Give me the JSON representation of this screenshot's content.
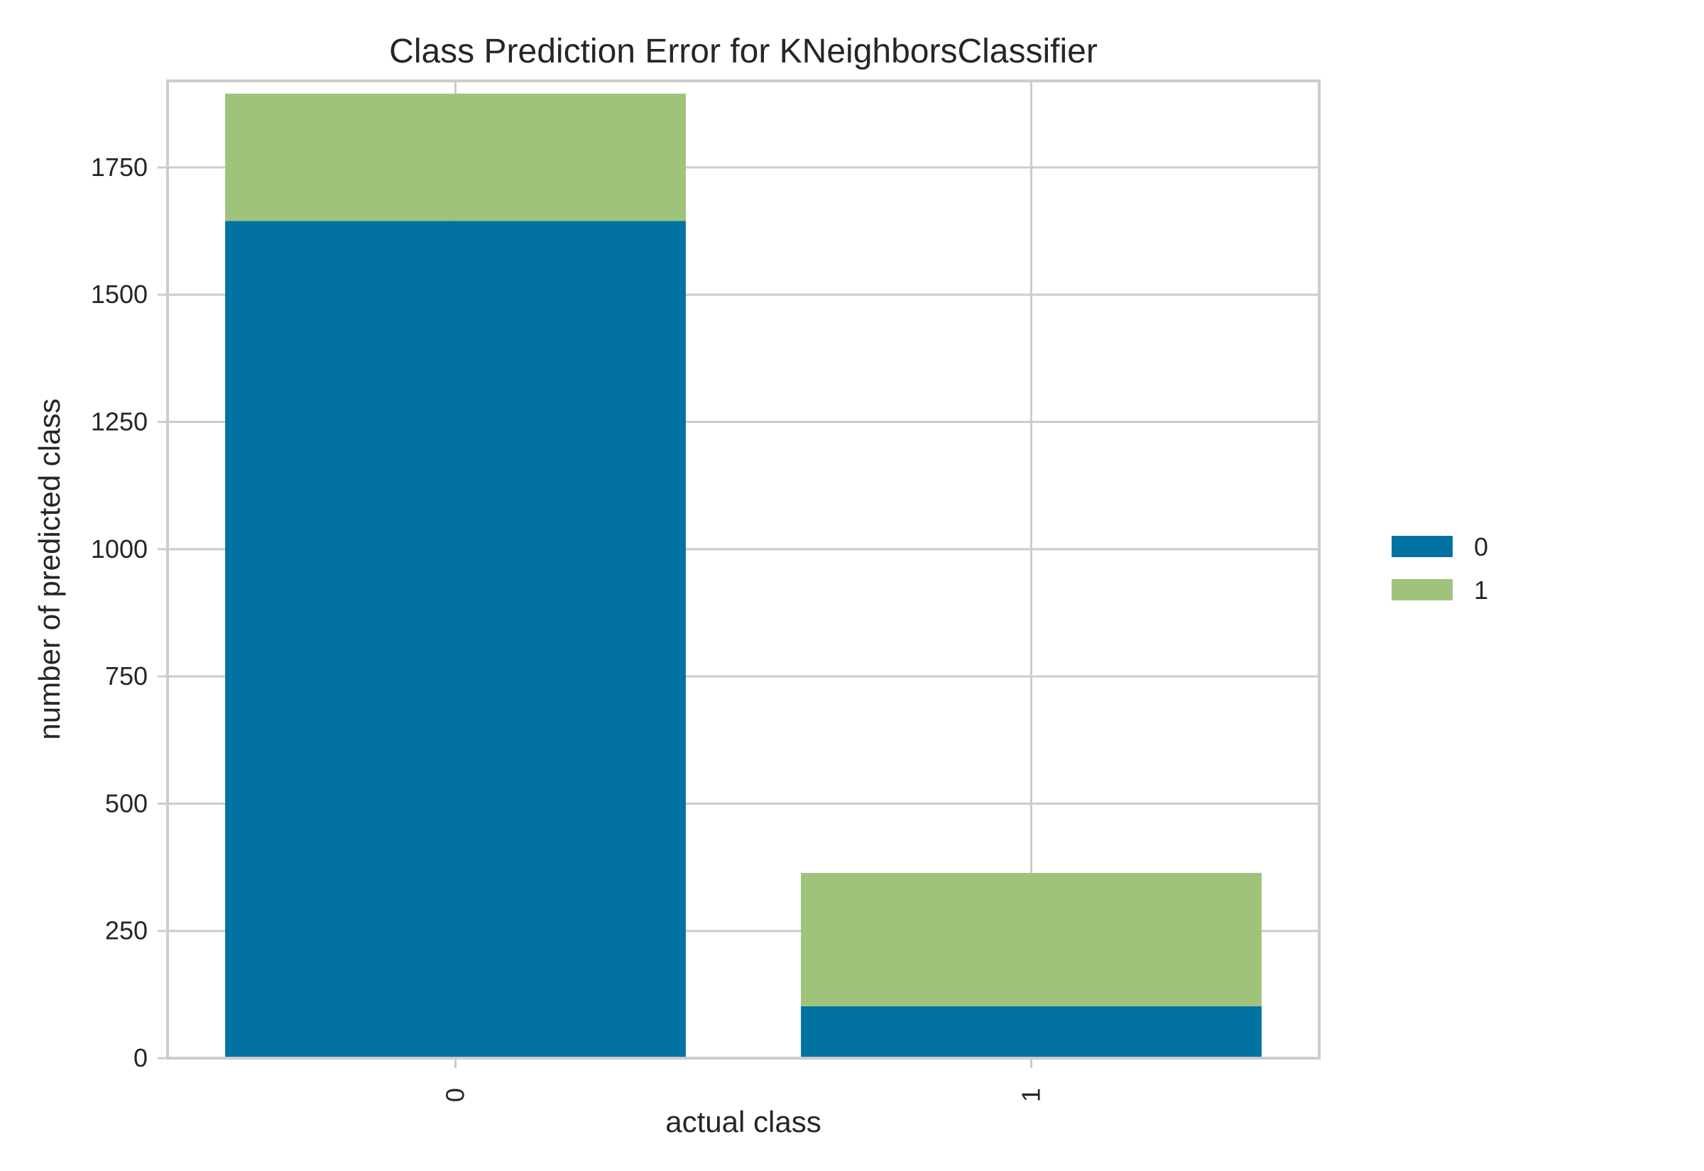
{
  "chart_data": {
    "type": "bar",
    "stacked": true,
    "title": "Class Prediction Error for KNeighborsClassifier",
    "xlabel": "actual class",
    "ylabel": "number of predicted class",
    "categories": [
      "0",
      "1"
    ],
    "series": [
      {
        "name": "0",
        "values": [
          1645,
          102
        ],
        "color": "#0272a2"
      },
      {
        "name": "1",
        "values": [
          250,
          262
        ],
        "color": "#9fc37b"
      }
    ],
    "ylim": [
      0,
      1920
    ],
    "yticks": [
      0,
      250,
      500,
      750,
      1000,
      1250,
      1500,
      1750
    ],
    "grid": true,
    "legend_position": "right",
    "colors": {
      "grid": "#cccccc",
      "spine": "#cccccc",
      "text": "#262626"
    }
  }
}
